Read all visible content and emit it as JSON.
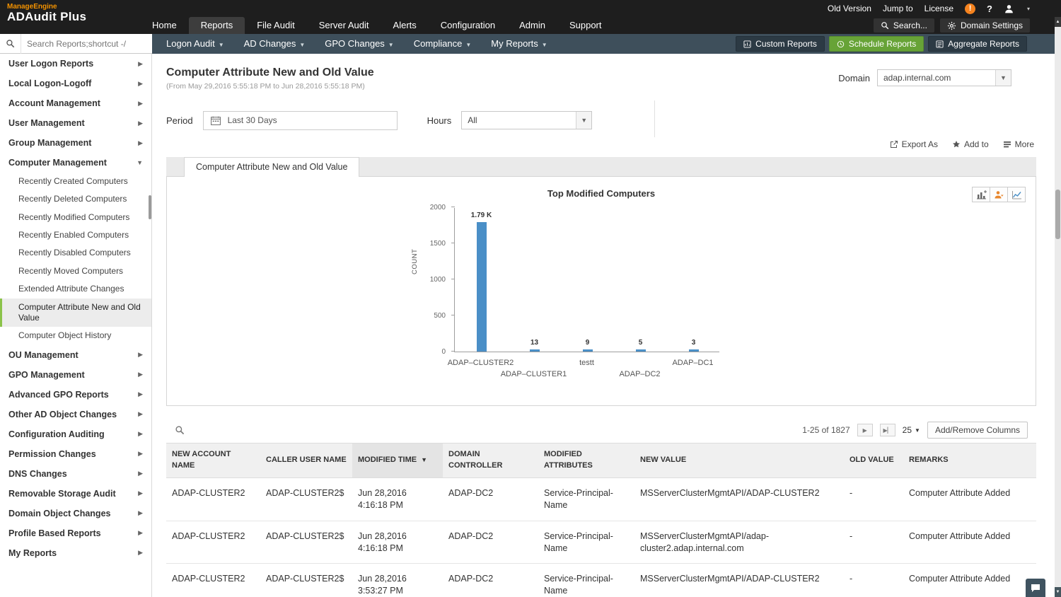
{
  "colors": {
    "brand_orange": "#f39200",
    "button_green": "#67a337",
    "chart_bar_blue": "#4a8fc7",
    "selected_item_green": "#8bc34a",
    "toolbar_bg": "#3e4f5b"
  },
  "topbar": {
    "brand": {
      "manageengine": "ManageEngine",
      "product": "ADAudit Plus"
    },
    "utility_links": [
      {
        "label": "Old Version"
      },
      {
        "label": "Jump to"
      },
      {
        "label": "License"
      }
    ],
    "nav": [
      {
        "label": "Home",
        "active": false
      },
      {
        "label": "Reports",
        "active": true
      },
      {
        "label": "File Audit",
        "active": false
      },
      {
        "label": "Server Audit",
        "active": false
      },
      {
        "label": "Alerts",
        "active": false
      },
      {
        "label": "Configuration",
        "active": false
      },
      {
        "label": "Admin",
        "active": false
      },
      {
        "label": "Support",
        "active": false
      }
    ],
    "search_button": "Search...",
    "domain_settings_button": "Domain Settings"
  },
  "toolbar": {
    "search_placeholder": "Search Reports;shortcut -/",
    "menus": [
      "Logon Audit",
      "AD Changes",
      "GPO Changes",
      "Compliance",
      "My Reports"
    ],
    "buttons": [
      {
        "label": "Custom Reports",
        "style": "dark",
        "icon": "custom-reports"
      },
      {
        "label": "Schedule Reports",
        "style": "green",
        "icon": "clock"
      },
      {
        "label": "Aggregate Reports",
        "style": "dark",
        "icon": "aggregate-reports"
      }
    ]
  },
  "sidebar": {
    "items": [
      {
        "label": "User Logon Reports"
      },
      {
        "label": "Local Logon-Logoff"
      },
      {
        "label": "Account Management"
      },
      {
        "label": "User Management"
      },
      {
        "label": "Group Management"
      },
      {
        "label": "Computer Management",
        "expanded": true,
        "children": [
          {
            "label": "Recently Created Computers"
          },
          {
            "label": "Recently Deleted Computers"
          },
          {
            "label": "Recently Modified Computers"
          },
          {
            "label": "Recently Enabled Computers"
          },
          {
            "label": "Recently Disabled Computers"
          },
          {
            "label": "Recently Moved Computers"
          },
          {
            "label": "Extended Attribute Changes"
          },
          {
            "label": "Computer Attribute New and Old Value",
            "selected": true
          },
          {
            "label": "Computer Object History"
          }
        ]
      },
      {
        "label": "OU Management"
      },
      {
        "label": "GPO Management"
      },
      {
        "label": "Advanced GPO Reports"
      },
      {
        "label": "Other AD Object Changes"
      },
      {
        "label": "Configuration Auditing"
      },
      {
        "label": "Permission Changes"
      },
      {
        "label": "DNS Changes"
      },
      {
        "label": "Removable Storage Audit"
      },
      {
        "label": "Domain Object Changes"
      },
      {
        "label": "Profile Based Reports"
      },
      {
        "label": "My Reports"
      }
    ]
  },
  "report": {
    "title": "Computer Attribute New and Old Value",
    "date_range": "(From May 29,2016 5:55:18 PM to Jun 28,2016 5:55:18 PM)",
    "domain": {
      "label": "Domain",
      "value": "adap.internal.com"
    },
    "filters": {
      "period_label": "Period",
      "period_value": "Last 30 Days",
      "hours_label": "Hours",
      "hours_value": "All"
    },
    "actions": [
      {
        "label": "Export As",
        "icon": "export"
      },
      {
        "label": "Add to",
        "icon": "star"
      },
      {
        "label": "More",
        "icon": "more"
      }
    ],
    "tab": "Computer Attribute New and Old Value"
  },
  "chart_data": {
    "type": "bar",
    "title": "Top Modified Computers",
    "categories": [
      "ADAP–CLUSTER2",
      "ADAP–CLUSTER1",
      "testt",
      "ADAP–DC2",
      "ADAP–DC1"
    ],
    "values": [
      1790,
      13,
      9,
      5,
      3
    ],
    "value_labels": [
      "1.79 K",
      "13",
      "9",
      "5",
      "3"
    ],
    "ylabel": "COUNT",
    "xlabel": "",
    "yticks": [
      0,
      500,
      1000,
      1500,
      2000
    ],
    "ylim": [
      0,
      2000
    ],
    "bar_color": "#4a8fc7",
    "grid": false,
    "legend": false
  },
  "table": {
    "pagination": {
      "range": "1-25 of 1827",
      "page_size": "25"
    },
    "add_remove_columns_label": "Add/Remove Columns",
    "columns": [
      "NEW ACCOUNT NAME",
      "CALLER USER NAME",
      "MODIFIED TIME",
      "DOMAIN CONTROLLER",
      "MODIFIED ATTRIBUTES",
      "NEW VALUE",
      "OLD VALUE",
      "REMARKS"
    ],
    "sorted_column": "MODIFIED TIME",
    "sort_direction": "desc",
    "rows": [
      [
        "ADAP-CLUSTER2",
        "ADAP-CLUSTER2$",
        "Jun 28,2016 4:16:18 PM",
        "ADAP-DC2",
        "Service-Principal-Name",
        "MSServerClusterMgmtAPI/ADAP-CLUSTER2",
        "-",
        "Computer Attribute Added"
      ],
      [
        "ADAP-CLUSTER2",
        "ADAP-CLUSTER2$",
        "Jun 28,2016 4:16:18 PM",
        "ADAP-DC2",
        "Service-Principal-Name",
        "MSServerClusterMgmtAPI/adap-cluster2.adap.internal.com",
        "-",
        "Computer Attribute Added"
      ],
      [
        "ADAP-CLUSTER2",
        "ADAP-CLUSTER2$",
        "Jun 28,2016 3:53:27 PM",
        "ADAP-DC2",
        "Service-Principal-Name",
        "MSServerClusterMgmtAPI/ADAP-CLUSTER2",
        "-",
        "Computer Attribute Added"
      ]
    ]
  }
}
